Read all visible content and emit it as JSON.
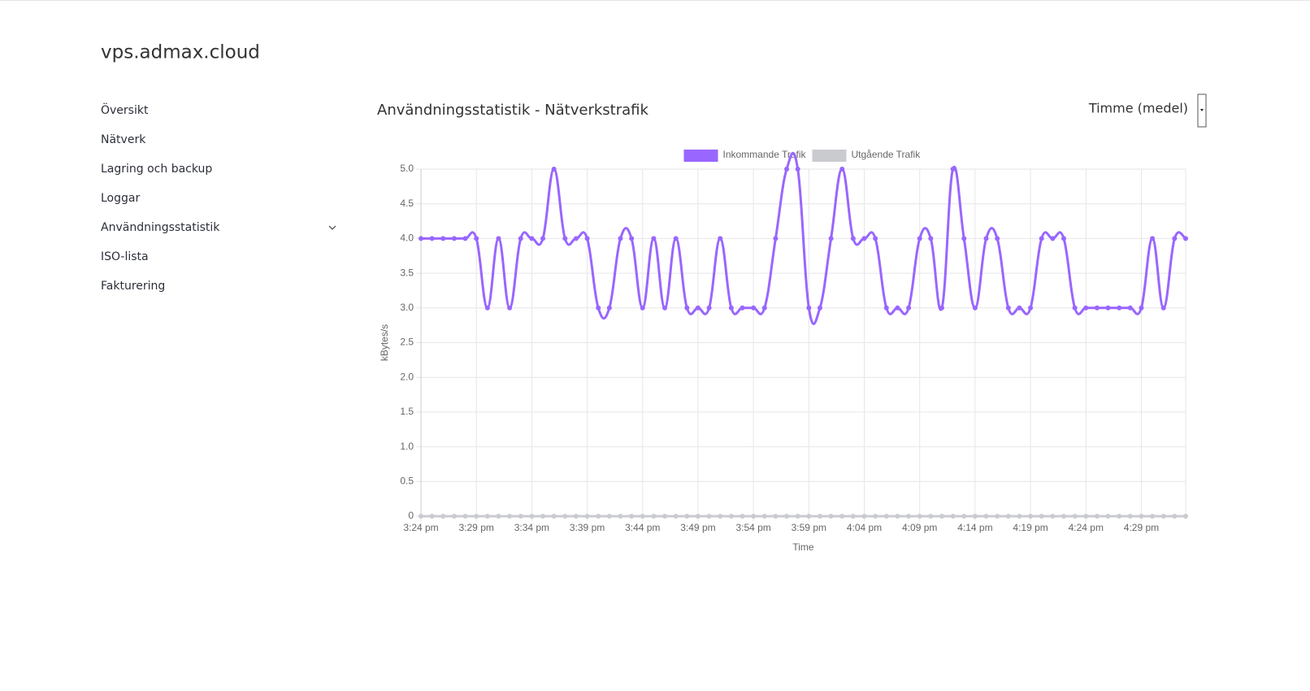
{
  "header": {
    "title": "vps.admax.cloud"
  },
  "nav": {
    "items": [
      "Översikt",
      "Nätverk",
      "Lagring och backup",
      "Loggar",
      "Användningsstatistik",
      "ISO-lista",
      "Fakturering"
    ]
  },
  "panel": {
    "title": "Användningsstatistik - Nätverkstrafik",
    "dropdown": "Timme (medel)"
  },
  "chart_data": {
    "type": "line",
    "xlabel": "Time",
    "ylabel": "kBytes/s",
    "categories": [
      "3:24 pm",
      null,
      null,
      null,
      null,
      "3:29 pm",
      null,
      null,
      null,
      null,
      "3:34 pm",
      null,
      null,
      null,
      null,
      "3:39 pm",
      null,
      null,
      null,
      null,
      "3:44 pm",
      null,
      null,
      null,
      null,
      "3:49 pm",
      null,
      null,
      null,
      null,
      "3:54 pm",
      null,
      null,
      null,
      null,
      "3:59 pm",
      null,
      null,
      null,
      null,
      "4:04 pm",
      null,
      null,
      null,
      null,
      "4:09 pm",
      null,
      null,
      null,
      null,
      "4:14 pm",
      null,
      null,
      null,
      null,
      "4:19 pm",
      null,
      null,
      null,
      null,
      "4:24 pm",
      null,
      null,
      null,
      null,
      "4:29 pm",
      null,
      null,
      null,
      null
    ],
    "series": [
      {
        "name": "Inkommande Trafik",
        "color": "#9966ff",
        "values": [
          4,
          4,
          4,
          4,
          4,
          4,
          3,
          4,
          3,
          4,
          4,
          4,
          5,
          4,
          4,
          4,
          3,
          3,
          4,
          4,
          3,
          4,
          3,
          4,
          3,
          3,
          3,
          4,
          3,
          3,
          3,
          3,
          4,
          5,
          5,
          3,
          3,
          4,
          5,
          4,
          4,
          4,
          3,
          3,
          3,
          4,
          4,
          3,
          5,
          4,
          3,
          4,
          4,
          3,
          3,
          3,
          4,
          4,
          4,
          3,
          3,
          3,
          3,
          3,
          3,
          3,
          4,
          3,
          4,
          4
        ]
      },
      {
        "name": "Utgående Trafik",
        "color": "#c9cbcf",
        "values": [
          0,
          0,
          0,
          0,
          0,
          0,
          0,
          0,
          0,
          0,
          0,
          0,
          0,
          0,
          0,
          0,
          0,
          0,
          0,
          0,
          0,
          0,
          0,
          0,
          0,
          0,
          0,
          0,
          0,
          0,
          0,
          0,
          0,
          0,
          0,
          0,
          0,
          0,
          0,
          0,
          0,
          0,
          0,
          0,
          0,
          0,
          0,
          0,
          0,
          0,
          0,
          0,
          0,
          0,
          0,
          0,
          0,
          0,
          0,
          0,
          0,
          0,
          0,
          0,
          0,
          0,
          0,
          0,
          0,
          0
        ]
      }
    ],
    "ylim": [
      0,
      5
    ],
    "yticks": [
      0,
      0.5,
      {
        "value": 1,
        "label": "1.0"
      },
      1.5,
      {
        "value": 2,
        "label": "2.0"
      },
      2.5,
      {
        "value": 3,
        "label": "3.0"
      },
      3.5,
      {
        "value": 4,
        "label": "4.0"
      },
      4.5,
      {
        "value": 5,
        "label": "5.0"
      }
    ],
    "grid": true,
    "legend": "top"
  }
}
